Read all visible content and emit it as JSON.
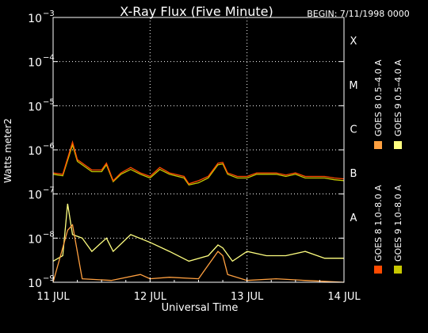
{
  "chart_data": {
    "type": "line",
    "title": "X-Ray Flux (Five Minute)",
    "begin_label": "BEGIN: 7/11/1998 0000",
    "ylabel": "Watts meter2",
    "xlabel": "Universal Time",
    "y_scale": "log",
    "ylim": [
      1e-09,
      0.001
    ],
    "y_ticks": [
      {
        "value": 1e-09,
        "mant": "10",
        "exp": "−9"
      },
      {
        "value": 1e-08,
        "mant": "10",
        "exp": "−8"
      },
      {
        "value": 1e-07,
        "mant": "10",
        "exp": "−7"
      },
      {
        "value": 1e-06,
        "mant": "10",
        "exp": "−6"
      },
      {
        "value": 1e-05,
        "mant": "10",
        "exp": "−5"
      },
      {
        "value": 0.0001,
        "mant": "10",
        "exp": "−4"
      },
      {
        "value": 0.001,
        "mant": "10",
        "exp": "−3"
      }
    ],
    "x_ticks": [
      {
        "day": 0,
        "label": "11 JUL"
      },
      {
        "day": 1,
        "label": "12 JUL"
      },
      {
        "day": 2,
        "label": "13 JUL"
      },
      {
        "day": 3,
        "label": "14 JUL"
      }
    ],
    "flare_classes": [
      {
        "label": "A",
        "value": 3e-08
      },
      {
        "label": "B",
        "value": 3e-07
      },
      {
        "label": "C",
        "value": 3e-06
      },
      {
        "label": "M",
        "value": 3e-05
      },
      {
        "label": "X",
        "value": 0.0003
      }
    ],
    "grid": true,
    "legend_position": "right, vertical",
    "series": [
      {
        "name": "GOES 8 1.0–8.0 A",
        "color": "#ff4a00",
        "points": [
          [
            0,
            3e-07
          ],
          [
            0.1,
            2.8e-07
          ],
          [
            0.2,
            1.5e-06
          ],
          [
            0.25,
            6e-07
          ],
          [
            0.4,
            3.5e-07
          ],
          [
            0.5,
            3.5e-07
          ],
          [
            0.55,
            5e-07
          ],
          [
            0.62,
            2e-07
          ],
          [
            0.7,
            3e-07
          ],
          [
            0.8,
            4e-07
          ],
          [
            0.9,
            3e-07
          ],
          [
            1.0,
            2.5e-07
          ],
          [
            1.1,
            4e-07
          ],
          [
            1.2,
            3e-07
          ],
          [
            1.35,
            2.5e-07
          ],
          [
            1.4,
            1.7e-07
          ],
          [
            1.5,
            2e-07
          ],
          [
            1.6,
            2.5e-07
          ],
          [
            1.7,
            5e-07
          ],
          [
            1.75,
            5.2e-07
          ],
          [
            1.8,
            3e-07
          ],
          [
            1.9,
            2.5e-07
          ],
          [
            2.0,
            2.5e-07
          ],
          [
            2.1,
            3e-07
          ],
          [
            2.2,
            3e-07
          ],
          [
            2.3,
            3e-07
          ],
          [
            2.4,
            2.7e-07
          ],
          [
            2.5,
            3e-07
          ],
          [
            2.6,
            2.5e-07
          ],
          [
            2.7,
            2.5e-07
          ],
          [
            2.8,
            2.5e-07
          ],
          [
            2.9,
            2.3e-07
          ],
          [
            3.0,
            2.2e-07
          ]
        ]
      },
      {
        "name": "GOES 8 0.5–4.0 A",
        "color": "#ffa040",
        "points": [
          [
            0,
            1e-09
          ],
          [
            0.15,
            1.5e-08
          ],
          [
            0.2,
            2e-08
          ],
          [
            0.3,
            1.2e-09
          ],
          [
            0.6,
            1.1e-09
          ],
          [
            0.9,
            1.5e-09
          ],
          [
            1.0,
            1.2e-09
          ],
          [
            1.2,
            1.3e-09
          ],
          [
            1.5,
            1.2e-09
          ],
          [
            1.7,
            5e-09
          ],
          [
            1.75,
            4e-09
          ],
          [
            1.8,
            1.5e-09
          ],
          [
            2.0,
            1.1e-09
          ],
          [
            2.3,
            1.2e-09
          ],
          [
            2.6,
            1.1e-09
          ],
          [
            3.0,
            1e-09
          ]
        ]
      },
      {
        "name": "GOES 9 0.5–4.0 A",
        "color": "#ffff80",
        "points": [
          [
            0,
            3e-09
          ],
          [
            0.1,
            4e-09
          ],
          [
            0.15,
            6e-08
          ],
          [
            0.2,
            1.2e-08
          ],
          [
            0.3,
            1e-08
          ],
          [
            0.4,
            5e-09
          ],
          [
            0.55,
            1e-08
          ],
          [
            0.62,
            5e-09
          ],
          [
            0.8,
            1.2e-08
          ],
          [
            1.0,
            8e-09
          ],
          [
            1.2,
            5e-09
          ],
          [
            1.4,
            3e-09
          ],
          [
            1.6,
            4e-09
          ],
          [
            1.7,
            7e-09
          ],
          [
            1.75,
            6e-09
          ],
          [
            1.85,
            3e-09
          ],
          [
            2.0,
            5e-09
          ],
          [
            2.2,
            4e-09
          ],
          [
            2.4,
            4e-09
          ],
          [
            2.6,
            5e-09
          ],
          [
            2.8,
            3.5e-09
          ],
          [
            3.0,
            3.5e-09
          ]
        ]
      },
      {
        "name": "GOES 9 1.0–8.0 A",
        "color": "#c8c800",
        "points": [
          [
            0,
            2.8e-07
          ],
          [
            0.1,
            2.6e-07
          ],
          [
            0.2,
            1.3e-06
          ],
          [
            0.25,
            5.5e-07
          ],
          [
            0.4,
            3.2e-07
          ],
          [
            0.5,
            3.2e-07
          ],
          [
            0.55,
            4.6e-07
          ],
          [
            0.62,
            1.9e-07
          ],
          [
            0.7,
            2.8e-07
          ],
          [
            0.8,
            3.6e-07
          ],
          [
            0.9,
            2.8e-07
          ],
          [
            1.0,
            2.3e-07
          ],
          [
            1.1,
            3.6e-07
          ],
          [
            1.2,
            2.8e-07
          ],
          [
            1.35,
            2.3e-07
          ],
          [
            1.4,
            1.6e-07
          ],
          [
            1.5,
            1.8e-07
          ],
          [
            1.6,
            2.3e-07
          ],
          [
            1.7,
            4.6e-07
          ],
          [
            1.75,
            4.8e-07
          ],
          [
            1.8,
            2.8e-07
          ],
          [
            1.9,
            2.3e-07
          ],
          [
            2.0,
            2.3e-07
          ],
          [
            2.1,
            2.8e-07
          ],
          [
            2.2,
            2.8e-07
          ],
          [
            2.3,
            2.8e-07
          ],
          [
            2.4,
            2.5e-07
          ],
          [
            2.5,
            2.8e-07
          ],
          [
            2.6,
            2.3e-07
          ],
          [
            2.7,
            2.3e-07
          ],
          [
            2.8,
            2.3e-07
          ],
          [
            2.9,
            2.1e-07
          ],
          [
            3.0,
            2e-07
          ]
        ]
      }
    ]
  },
  "legend_left_text": "GOES 8 1.0–8.0 A",
  "legend_left2_text": "GOES 9 1.0–8.0 A",
  "legend_right_text": "GOES 8 0.5–4.0 A",
  "legend_right2_text": "GOES 9 0.5–4.0 A"
}
